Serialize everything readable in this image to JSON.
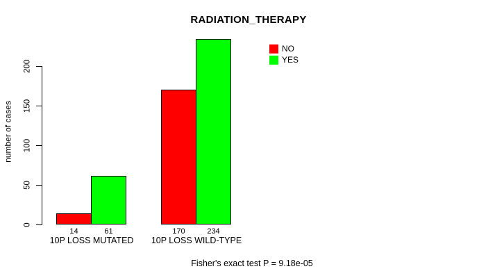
{
  "chart_data": {
    "type": "bar",
    "title": "RADIATION_THERAPY",
    "ylabel": "number of cases",
    "xlabel": "",
    "categories": [
      "10P LOSS MUTATED",
      "10P LOSS WILD-TYPE"
    ],
    "series": [
      {
        "name": "NO",
        "color": "#ff0000",
        "values": [
          14,
          170
        ]
      },
      {
        "name": "YES",
        "color": "#00ff00",
        "values": [
          61,
          234
        ]
      }
    ],
    "yticks": [
      0,
      50,
      100,
      150,
      200
    ],
    "ylim": [
      0,
      240
    ],
    "grid": false,
    "bar_value_labels_shown": true,
    "legend_position": "top-right",
    "footnote": "Fisher's exact test P = 9.18e-05"
  },
  "colors": {
    "no": "#ff0000",
    "yes": "#00ff00",
    "axis": "#000000",
    "background": "#ffffff"
  }
}
